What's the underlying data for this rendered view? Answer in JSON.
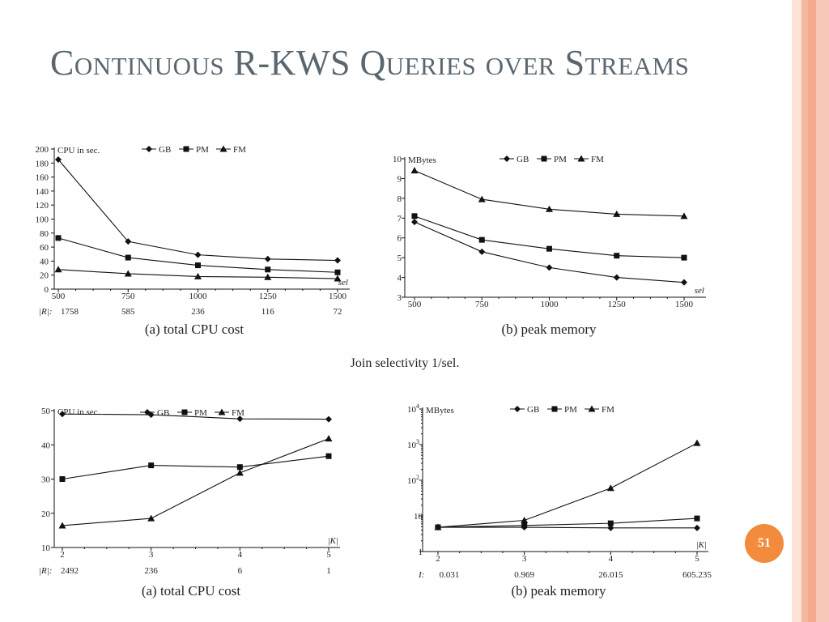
{
  "slide": {
    "title": "Continuous R-KWS Queries over Streams",
    "page_number": "51",
    "figure_caption": "Join selectivity 1/sel.",
    "stripe_colors": [
      "#fbe1d6",
      "#f6b8a0",
      "#f5a98f",
      "#f8c8b6"
    ]
  },
  "series_styles": {
    "GB": {
      "marker": "diamond"
    },
    "PM": {
      "marker": "square"
    },
    "FM": {
      "marker": "triangle"
    }
  },
  "chart_data": [
    {
      "type": "line",
      "caption": "(a) total CPU cost",
      "y_title": "CPU in sec.",
      "x_title": "sel",
      "scale": "linear",
      "x": [
        "500",
        "750",
        "1000",
        "1250",
        "1500"
      ],
      "x_secondary": {
        "label": "|R|:",
        "values": [
          "1758",
          "585",
          "236",
          "116",
          "72"
        ]
      },
      "ylim": [
        0,
        200
      ],
      "y_ticks": [
        "0",
        "20",
        "40",
        "60",
        "80",
        "100",
        "120",
        "140",
        "160",
        "180",
        "200"
      ],
      "legend": [
        "GB",
        "PM",
        "FM"
      ],
      "series": [
        {
          "name": "GB",
          "values": [
            185,
            68,
            49,
            43,
            41
          ]
        },
        {
          "name": "PM",
          "values": [
            73,
            45,
            34,
            28,
            24
          ]
        },
        {
          "name": "FM",
          "values": [
            28,
            22,
            18,
            17,
            15
          ]
        }
      ]
    },
    {
      "type": "line",
      "caption": "(b) peak memory",
      "y_title": "MBytes",
      "x_title": "sel",
      "scale": "linear",
      "x": [
        "500",
        "750",
        "1000",
        "1250",
        "1500"
      ],
      "ylim": [
        3,
        10
      ],
      "y_ticks": [
        "3",
        "4",
        "5",
        "6",
        "7",
        "8",
        "9",
        "10"
      ],
      "legend": [
        "GB",
        "PM",
        "FM"
      ],
      "series": [
        {
          "name": "GB",
          "values": [
            6.8,
            5.3,
            4.5,
            4.0,
            3.75
          ]
        },
        {
          "name": "PM",
          "values": [
            7.1,
            5.9,
            5.45,
            5.1,
            5.0
          ]
        },
        {
          "name": "FM",
          "values": [
            9.4,
            7.95,
            7.45,
            7.2,
            7.1
          ]
        }
      ]
    },
    {
      "type": "line",
      "caption": "(a) total CPU cost",
      "y_title": "CPU in sec.",
      "x_title": "|K|",
      "scale": "linear",
      "x": [
        "2",
        "3",
        "4",
        "5"
      ],
      "x_secondary": {
        "label": "|R|:",
        "values": [
          "2492",
          "236",
          "6",
          "1"
        ]
      },
      "ylim": [
        10,
        50
      ],
      "y_ticks": [
        "10",
        "20",
        "30",
        "40",
        "50"
      ],
      "legend": [
        "GB",
        "PM",
        "FM"
      ],
      "series": [
        {
          "name": "GB",
          "values": [
            49,
            48.8,
            47.6,
            47.5
          ]
        },
        {
          "name": "PM",
          "values": [
            30,
            34,
            33.5,
            36.7
          ]
        },
        {
          "name": "FM",
          "values": [
            16.4,
            18.5,
            31.8,
            41.8
          ]
        }
      ]
    },
    {
      "type": "line",
      "caption": "(b) peak memory",
      "y_title": "MBytes",
      "x_title": "|K|",
      "scale": "log",
      "x": [
        "2",
        "3",
        "4",
        "5"
      ],
      "x_secondary": {
        "label": "I:",
        "values": [
          "0.031",
          "0.969",
          "26.015",
          "605.235"
        ]
      },
      "ylim": [
        1,
        10000
      ],
      "y_ticks": [
        {
          "base": "1",
          "exp": ""
        },
        {
          "base": "10",
          "exp": ""
        },
        {
          "base": "10",
          "exp": "2"
        },
        {
          "base": "10",
          "exp": "3"
        },
        {
          "base": "10",
          "exp": "4"
        }
      ],
      "legend": [
        "GB",
        "PM",
        "FM"
      ],
      "series": [
        {
          "name": "GB",
          "values": [
            4.8,
            4.8,
            4.6,
            4.6
          ]
        },
        {
          "name": "PM",
          "values": [
            4.8,
            5.4,
            6.2,
            8.5
          ]
        },
        {
          "name": "FM",
          "values": [
            4.8,
            7.5,
            60,
            1100
          ]
        }
      ]
    }
  ]
}
